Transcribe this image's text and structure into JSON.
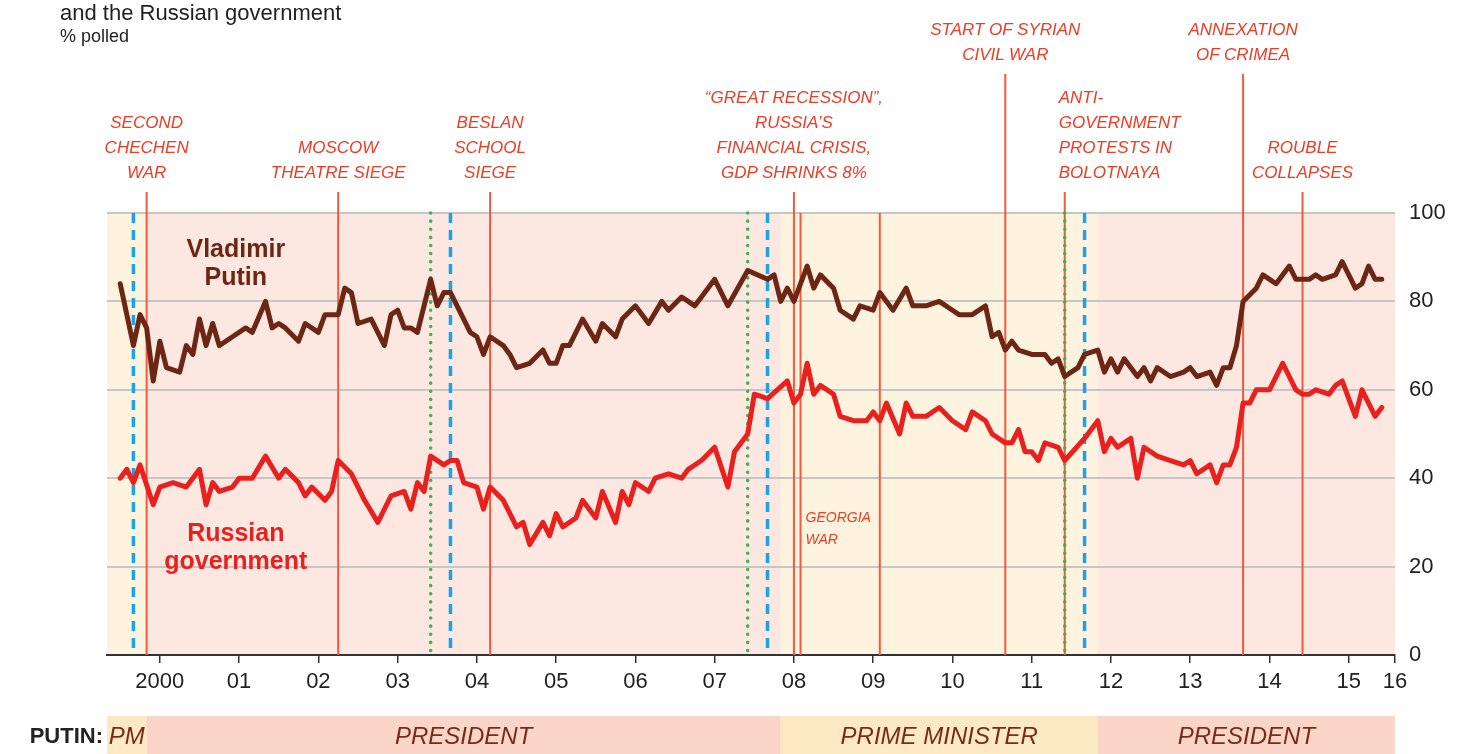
{
  "chart_data": {
    "type": "line",
    "title": "and the Russian government",
    "subtitle": "% polled",
    "xlim": [
      "1999-11",
      "2016-02"
    ],
    "xticks": [
      {
        "value": "2000-07",
        "label": "2000"
      },
      {
        "value": "2001-07",
        "label": "01"
      },
      {
        "value": "2002-07",
        "label": "02"
      },
      {
        "value": "2003-07",
        "label": "03"
      },
      {
        "value": "2004-07",
        "label": "04"
      },
      {
        "value": "2005-07",
        "label": "05"
      },
      {
        "value": "2006-07",
        "label": "06"
      },
      {
        "value": "2007-07",
        "label": "07"
      },
      {
        "value": "2008-07",
        "label": "08"
      },
      {
        "value": "2009-07",
        "label": "09"
      },
      {
        "value": "2010-07",
        "label": "10"
      },
      {
        "value": "2011-07",
        "label": "11"
      },
      {
        "value": "2012-07",
        "label": "12"
      },
      {
        "value": "2013-07",
        "label": "13"
      },
      {
        "value": "2014-07",
        "label": "14"
      },
      {
        "value": "2015-07",
        "label": "15"
      },
      {
        "value": "2016-02",
        "label": "16"
      }
    ],
    "ylim": [
      0,
      100
    ],
    "yticks": [
      0,
      20,
      40,
      60,
      80,
      100
    ],
    "grid": "y",
    "marker": "none",
    "line_style": "solid",
    "series": [
      {
        "name": "Vladimir Putin",
        "color": "#6e2614",
        "x": [
          "2000-01",
          "2000-03",
          "2000-04",
          "2000-05",
          "2000-06",
          "2000-07",
          "2000-08",
          "2000-10",
          "2000-11",
          "2000-12",
          "2001-01",
          "2001-02",
          "2001-03",
          "2001-04",
          "2001-06",
          "2001-08",
          "2001-09",
          "2001-11",
          "2001-12",
          "2002-01",
          "2002-02",
          "2002-04",
          "2002-05",
          "2002-07",
          "2002-08",
          "2002-10",
          "2002-11",
          "2002-12",
          "2003-01",
          "2003-03",
          "2003-04",
          "2003-05",
          "2003-06",
          "2003-07",
          "2003-08",
          "2003-09",
          "2003-10",
          "2003-12",
          "2004-01",
          "2004-02",
          "2004-03",
          "2004-04",
          "2004-06",
          "2004-07",
          "2004-08",
          "2004-09",
          "2004-11",
          "2004-12",
          "2005-01",
          "2005-03",
          "2005-05",
          "2005-06",
          "2005-07",
          "2005-08",
          "2005-09",
          "2005-11",
          "2006-01",
          "2006-02",
          "2006-04",
          "2006-05",
          "2006-07",
          "2006-09",
          "2006-11",
          "2006-12",
          "2007-02",
          "2007-04",
          "2007-05",
          "2007-07",
          "2007-09",
          "2007-12",
          "2008-03",
          "2008-04",
          "2008-05",
          "2008-06",
          "2008-07",
          "2008-09",
          "2008-10",
          "2008-11",
          "2009-01",
          "2009-02",
          "2009-04",
          "2009-05",
          "2009-07",
          "2009-08",
          "2009-10",
          "2009-12",
          "2010-01",
          "2010-03",
          "2010-05",
          "2010-07",
          "2010-08",
          "2010-10",
          "2010-12",
          "2011-01",
          "2011-02",
          "2011-03",
          "2011-04",
          "2011-05",
          "2011-07",
          "2011-09",
          "2011-10",
          "2011-11",
          "2011-12",
          "2012-02",
          "2012-03",
          "2012-05",
          "2012-06",
          "2012-07",
          "2012-08",
          "2012-09",
          "2012-11",
          "2012-12",
          "2013-01",
          "2013-02",
          "2013-04",
          "2013-06",
          "2013-07",
          "2013-08",
          "2013-10",
          "2013-11",
          "2013-12",
          "2014-01",
          "2014-02",
          "2014-03",
          "2014-05",
          "2014-06",
          "2014-08",
          "2014-10",
          "2014-11",
          "2015-01",
          "2015-02",
          "2015-03",
          "2015-05",
          "2015-06",
          "2015-08",
          "2015-09",
          "2015-10",
          "2015-11",
          "2015-12"
        ],
        "values": [
          84,
          70,
          77,
          74,
          62,
          71,
          65,
          64,
          70,
          68,
          76,
          70,
          75,
          70,
          72,
          74,
          73,
          80,
          74,
          75,
          74,
          71,
          75,
          73,
          77,
          77,
          83,
          82,
          75,
          76,
          73,
          70,
          77,
          78,
          74,
          74,
          73,
          85,
          79,
          82,
          82,
          79,
          73,
          72,
          68,
          72,
          70,
          68,
          65,
          66,
          69,
          66,
          66,
          70,
          70,
          76,
          71,
          75,
          72,
          76,
          79,
          75,
          80,
          78,
          81,
          79,
          81,
          85,
          79,
          87,
          85,
          86,
          80,
          83,
          80,
          88,
          83,
          86,
          83,
          78,
          76,
          79,
          78,
          82,
          78,
          83,
          79,
          79,
          80,
          78,
          77,
          77,
          79,
          72,
          73,
          69,
          71,
          69,
          68,
          68,
          66,
          67,
          63,
          65,
          68,
          69,
          64,
          67,
          64,
          67,
          63,
          65,
          62,
          65,
          63,
          64,
          65,
          63,
          64,
          61,
          65,
          65,
          70,
          80,
          83,
          86,
          84,
          88,
          85,
          85,
          86,
          85,
          86,
          89,
          83,
          84,
          88,
          85,
          85
        ]
      },
      {
        "name": "Russian government",
        "color": "#e8201e",
        "x": [
          "2000-01",
          "2000-02",
          "2000-03",
          "2000-04",
          "2000-06",
          "2000-07",
          "2000-09",
          "2000-11",
          "2001-01",
          "2001-02",
          "2001-03",
          "2001-04",
          "2001-06",
          "2001-07",
          "2001-09",
          "2001-11",
          "2002-01",
          "2002-02",
          "2002-04",
          "2002-05",
          "2002-06",
          "2002-08",
          "2002-09",
          "2002-10",
          "2002-12",
          "2003-02",
          "2003-04",
          "2003-06",
          "2003-08",
          "2003-09",
          "2003-10",
          "2003-11",
          "2003-12",
          "2004-02",
          "2004-03",
          "2004-04",
          "2004-05",
          "2004-07",
          "2004-08",
          "2004-09",
          "2004-11",
          "2005-01",
          "2005-02",
          "2005-03",
          "2005-05",
          "2005-06",
          "2005-07",
          "2005-08",
          "2005-10",
          "2005-11",
          "2006-01",
          "2006-02",
          "2006-04",
          "2006-05",
          "2006-06",
          "2006-07",
          "2006-09",
          "2006-10",
          "2006-12",
          "2007-02",
          "2007-03",
          "2007-05",
          "2007-07",
          "2007-09",
          "2007-10",
          "2007-12",
          "2008-01",
          "2008-03",
          "2008-06",
          "2008-07",
          "2008-08",
          "2008-09",
          "2008-10",
          "2008-11",
          "2009-01",
          "2009-02",
          "2009-04",
          "2009-06",
          "2009-07",
          "2009-08",
          "2009-09",
          "2009-11",
          "2009-12",
          "2010-01",
          "2010-03",
          "2010-05",
          "2010-07",
          "2010-09",
          "2010-10",
          "2010-11",
          "2010-12",
          "2011-01",
          "2011-03",
          "2011-04",
          "2011-05",
          "2011-06",
          "2011-07",
          "2011-08",
          "2011-09",
          "2011-11",
          "2011-12",
          "2012-03",
          "2012-05",
          "2012-06",
          "2012-07",
          "2012-08",
          "2012-10",
          "2012-11",
          "2012-12",
          "2013-02",
          "2013-04",
          "2013-06",
          "2013-07",
          "2013-08",
          "2013-10",
          "2013-11",
          "2013-12",
          "2014-01",
          "2014-02",
          "2014-03",
          "2014-04",
          "2014-05",
          "2014-07",
          "2014-09",
          "2014-11",
          "2014-12",
          "2015-01",
          "2015-02",
          "2015-04",
          "2015-05",
          "2015-06",
          "2015-08",
          "2015-09",
          "2015-11",
          "2015-12"
        ],
        "values": [
          40,
          42,
          39,
          43,
          34,
          38,
          39,
          38,
          42,
          34,
          39,
          37,
          38,
          40,
          40,
          45,
          40,
          42,
          39,
          36,
          38,
          35,
          37,
          44,
          41,
          35,
          30,
          36,
          37,
          33,
          39,
          37,
          45,
          43,
          44,
          44,
          39,
          38,
          33,
          38,
          35,
          29,
          30,
          25,
          30,
          27,
          32,
          29,
          31,
          35,
          31,
          37,
          30,
          37,
          34,
          39,
          37,
          40,
          41,
          40,
          42,
          44,
          47,
          38,
          46,
          50,
          59,
          58,
          62,
          57,
          59,
          66,
          59,
          61,
          59,
          54,
          53,
          53,
          55,
          53,
          57,
          50,
          57,
          54,
          54,
          56,
          53,
          51,
          55,
          54,
          53,
          50,
          48,
          48,
          51,
          46,
          46,
          44,
          48,
          47,
          44,
          49,
          53,
          46,
          49,
          47,
          49,
          40,
          47,
          45,
          44,
          43,
          44,
          41,
          43,
          39,
          43,
          43,
          47,
          57,
          57,
          60,
          60,
          66,
          60,
          59,
          59,
          60,
          59,
          61,
          62,
          54,
          60,
          54,
          56
        ]
      }
    ],
    "ref_lines": [
      {
        "axis": "x",
        "value": "2000-05",
        "label": "SECOND\nCHECHEN\nWAR",
        "color": "#f15a3b",
        "line_style": "solid"
      },
      {
        "axis": "x",
        "value": "2002-10",
        "label": "MOSCOW\nTHEATRE SIEGE",
        "color": "#f15a3b",
        "line_style": "solid"
      },
      {
        "axis": "x",
        "value": "2004-09",
        "label": "BESLAN\nSCHOOL\nSIEGE",
        "color": "#f15a3b",
        "line_style": "solid"
      },
      {
        "axis": "x",
        "value": "2008-07",
        "label": "“GREAT RECESSION”,\nRUSSIA’S\nFINANCIAL CRISIS,\nGDP SHRINKS 8%",
        "color": "#f15a3b",
        "line_style": "solid"
      },
      {
        "axis": "x",
        "value": "2008-08",
        "color": "#f15a3b",
        "line_style": "solid"
      },
      {
        "axis": "x",
        "value": "2009-08",
        "color": "#f15a3b",
        "line_style": "solid"
      },
      {
        "axis": "x",
        "value": "2011-03",
        "label": "START OF SYRIAN\nCIVIL WAR",
        "color": "#f15a3b",
        "line_style": "solid"
      },
      {
        "axis": "x",
        "value": "2011-12",
        "label": "ANTI-\nGOVERNMENT\nPROTESTS IN\nBOLOTNAYA",
        "color": "#f15a3b",
        "line_style": "solid"
      },
      {
        "axis": "x",
        "value": "2014-03",
        "label": "ANNEXATION\nOF CRIMEA",
        "color": "#f15a3b",
        "line_style": "solid"
      },
      {
        "axis": "x",
        "value": "2014-12",
        "label": "ROUBLE\nCOLLAPSES",
        "color": "#f15a3b",
        "line_style": "solid"
      },
      {
        "axis": "x",
        "value": "2000-03",
        "color": "#1aa3e8",
        "line_style": "dashed"
      },
      {
        "axis": "x",
        "value": "2004-03",
        "color": "#1aa3e8",
        "line_style": "dashed"
      },
      {
        "axis": "x",
        "value": "2008-03",
        "color": "#1aa3e8",
        "line_style": "dashed"
      },
      {
        "axis": "x",
        "value": "2012-03",
        "color": "#1aa3e8",
        "line_style": "dashed"
      },
      {
        "axis": "x",
        "value": "2003-12",
        "color": "#3cb44b",
        "line_style": "dotted"
      },
      {
        "axis": "x",
        "value": "2007-12",
        "color": "#3cb44b",
        "line_style": "dotted"
      },
      {
        "axis": "x",
        "value": "2011-12",
        "color": "#3cb44b",
        "line_style": "dotted"
      }
    ],
    "bands": [
      {
        "axis": "x",
        "from": "1999-11",
        "to": "2000-05",
        "label": "PM",
        "color": "#fde9c4"
      },
      {
        "axis": "x",
        "from": "2000-05",
        "to": "2008-05",
        "label": "PRESIDENT",
        "color": "#fbd6c8"
      },
      {
        "axis": "x",
        "from": "2008-05",
        "to": "2012-05",
        "label": "PRIME MINISTER",
        "color": "#fde9c4"
      },
      {
        "axis": "x",
        "from": "2012-05",
        "to": "2016-02",
        "label": "PRESIDENT",
        "color": "#fbd6c8"
      }
    ],
    "annotations": [
      "PUTIN:",
      {
        "text": "GEORGIA\nWAR",
        "x": "2008-08",
        "y": 30
      }
    ]
  }
}
